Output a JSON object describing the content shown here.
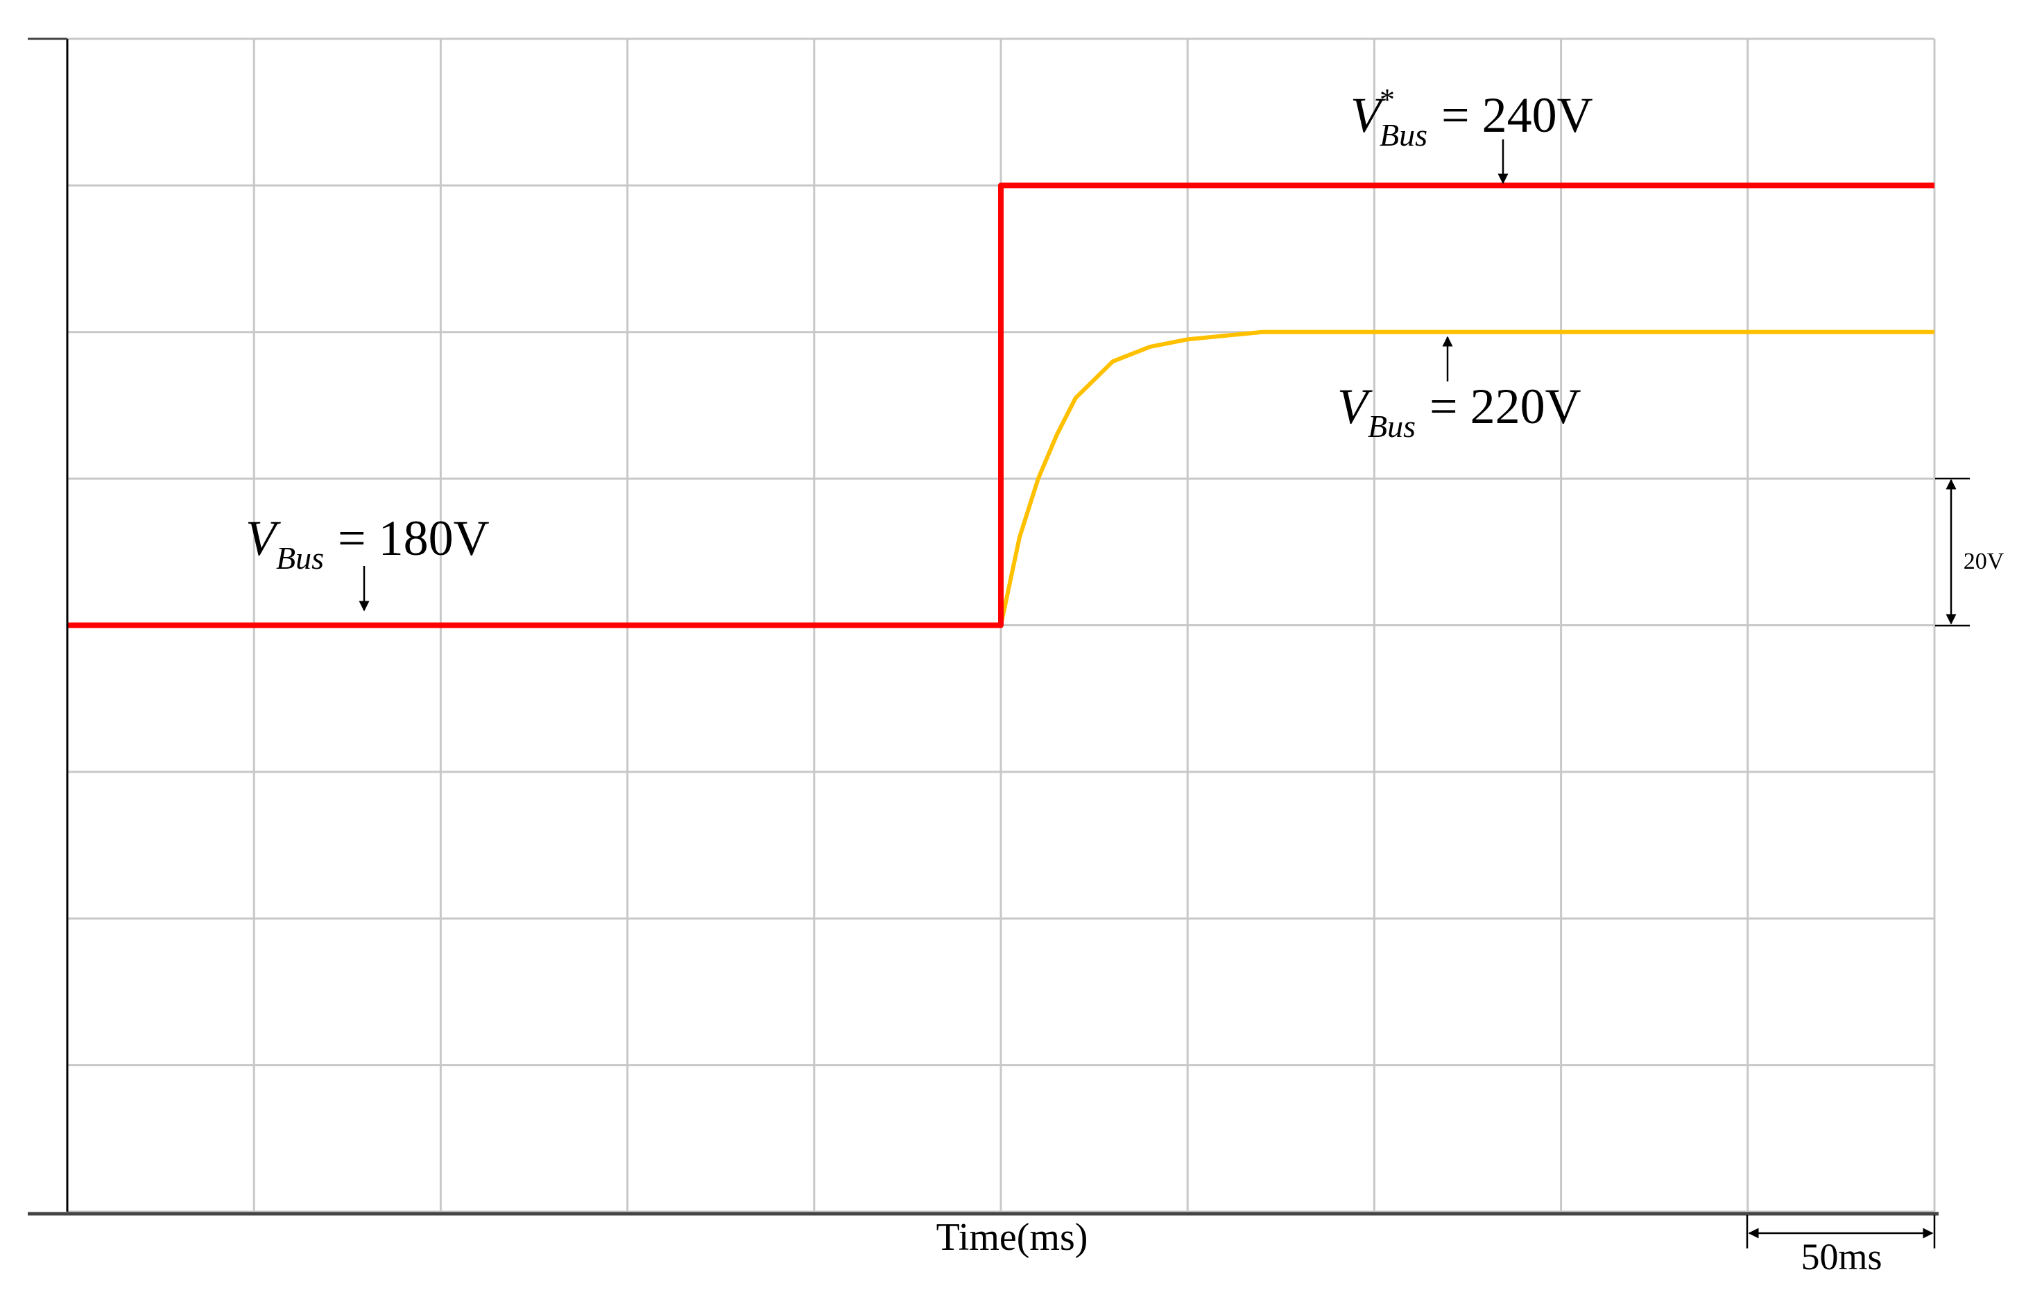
{
  "chart_data": {
    "type": "line",
    "x_label": "Time(ms)",
    "x": [
      0,
      250,
      250,
      255,
      260,
      265,
      270,
      280,
      290,
      300,
      320,
      500
    ],
    "series": [
      {
        "name": "V*Bus",
        "color": "#ff0000",
        "values": [
          180,
          180,
          240,
          240,
          240,
          240,
          240,
          240,
          240,
          240,
          240,
          240
        ]
      },
      {
        "name": "VBus",
        "color": "#ffc000",
        "values": [
          180,
          180,
          180,
          192,
          200,
          206,
          211,
          216,
          218,
          219,
          220,
          220
        ]
      }
    ],
    "xlim": [
      0,
      500
    ],
    "ylim": [
      100,
      260
    ],
    "xticks": [
      0,
      50,
      100,
      150,
      200,
      250,
      300,
      350,
      400,
      450,
      500
    ],
    "yticks": [
      100,
      120,
      140,
      160,
      180,
      200,
      220,
      240,
      260
    ],
    "grid": true,
    "annotations": [
      {
        "symbol": "V",
        "superscript": "*",
        "subscript": "Bus",
        "text": "= 240V"
      },
      {
        "symbol": "V",
        "subscript": "Bus",
        "text": "= 220V"
      },
      {
        "symbol": "V",
        "subscript": "Bus",
        "text": "= 180V"
      }
    ],
    "scale_labels": {
      "voltage": "20V",
      "time": "50ms"
    }
  }
}
